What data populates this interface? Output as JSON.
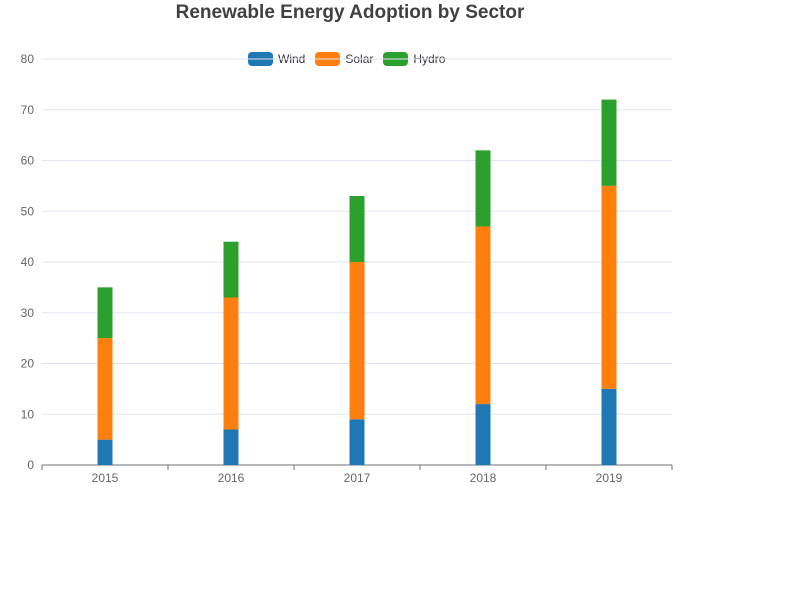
{
  "chart_data": {
    "type": "bar",
    "stacked": true,
    "title": "Renewable Energy Adoption by Sector",
    "xlabel": "",
    "ylabel": "",
    "categories": [
      "2015",
      "2016",
      "2017",
      "2018",
      "2019"
    ],
    "series": [
      {
        "name": "Wind",
        "color": "#1f77b4",
        "values": [
          5,
          7,
          9,
          12,
          15
        ]
      },
      {
        "name": "Solar",
        "color": "#ff7f0e",
        "values": [
          20,
          26,
          31,
          35,
          40
        ]
      },
      {
        "name": "Hydro",
        "color": "#2ca02c",
        "values": [
          10,
          11,
          13,
          15,
          17
        ]
      }
    ],
    "ylim": [
      0,
      80
    ],
    "yticks": [
      0,
      10,
      20,
      30,
      40,
      50,
      60,
      70,
      80
    ],
    "grid": true,
    "legend_position": "top-center"
  }
}
